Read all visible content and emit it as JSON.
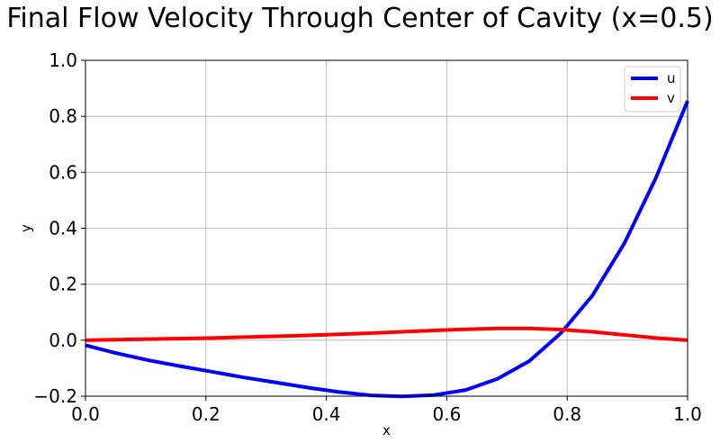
{
  "chart_data": {
    "type": "line",
    "title": "Final Flow Velocity Through Center of Cavity (x=0.5)",
    "xlabel": "x",
    "ylabel": "y",
    "xlim": [
      0.0,
      1.0
    ],
    "ylim": [
      -0.2,
      1.0
    ],
    "xticks": [
      "0.0",
      "0.2",
      "0.4",
      "0.6",
      "0.8",
      "1.0"
    ],
    "yticks": [
      "−0.2",
      "0.0",
      "0.2",
      "0.4",
      "0.6",
      "0.8",
      "1.0"
    ],
    "grid": true,
    "legend_position": "top-right",
    "x": [
      0.0,
      0.0526,
      0.1053,
      0.1579,
      0.2105,
      0.2632,
      0.3158,
      0.3684,
      0.4211,
      0.4737,
      0.5263,
      0.5789,
      0.6316,
      0.6842,
      0.7368,
      0.7895,
      0.8421,
      0.8947,
      0.9474,
      1.0
    ],
    "series": [
      {
        "name": "u",
        "color": "#0000ff",
        "values": [
          -0.018,
          -0.047,
          -0.072,
          -0.093,
          -0.113,
          -0.133,
          -0.151,
          -0.169,
          -0.185,
          -0.197,
          -0.201,
          -0.196,
          -0.178,
          -0.138,
          -0.075,
          0.025,
          0.16,
          0.345,
          0.58,
          0.855
        ]
      },
      {
        "name": "v",
        "color": "#ff0000",
        "values": [
          0.0,
          0.002,
          0.004,
          0.006,
          0.008,
          0.011,
          0.014,
          0.017,
          0.021,
          0.025,
          0.03,
          0.035,
          0.039,
          0.042,
          0.042,
          0.038,
          0.03,
          0.019,
          0.008,
          0.0
        ]
      }
    ]
  }
}
